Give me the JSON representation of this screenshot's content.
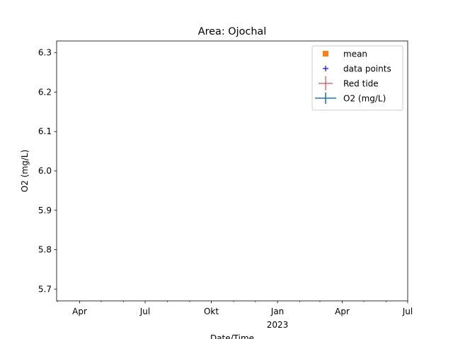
{
  "chart_data": {
    "type": "line",
    "title": "Area: Ojochal",
    "xlabel": "Date/Time",
    "ylabel": "O2 (mg/L)",
    "ylim": [
      5.67,
      6.33
    ],
    "y_ticks": [
      5.7,
      5.8,
      5.9,
      6.0,
      6.1,
      6.2,
      6.3
    ],
    "y_tick_labels": [
      "5.7",
      "5.8",
      "5.9",
      "6.0",
      "6.1",
      "6.2",
      "6.3"
    ],
    "xlim": [
      "2022-02-28",
      "2023-07-01"
    ],
    "x_major_ticks": [
      {
        "date": "2022-04-01",
        "label": "Apr",
        "sublabel": ""
      },
      {
        "date": "2022-07-01",
        "label": "Jul",
        "sublabel": ""
      },
      {
        "date": "2022-10-01",
        "label": "Okt",
        "sublabel": ""
      },
      {
        "date": "2023-01-01",
        "label": "Jan",
        "sublabel": "2023"
      },
      {
        "date": "2023-04-01",
        "label": "Apr",
        "sublabel": ""
      },
      {
        "date": "2023-07-01",
        "label": "Jul",
        "sublabel": ""
      }
    ],
    "x_minor_ticks": [
      "2022-03-01",
      "2022-05-01",
      "2022-06-01",
      "2022-08-01",
      "2022-09-01",
      "2022-11-01",
      "2022-12-01",
      "2023-02-01",
      "2023-03-01",
      "2023-05-01",
      "2023-06-01"
    ],
    "series": [
      {
        "name": "mean",
        "marker": "square",
        "color": "#ff7f0e",
        "points": []
      },
      {
        "name": "data points",
        "marker": "plus",
        "color": "#0000ff",
        "points": []
      },
      {
        "name": "Red tide",
        "marker": "errorbar-cross",
        "color": "#d62728",
        "points": []
      },
      {
        "name": "O2 (mg/L)",
        "marker": "errorbar-line",
        "color": "#1f77b4",
        "points": []
      }
    ],
    "legend": {
      "position": "top-right"
    },
    "grid": false
  }
}
